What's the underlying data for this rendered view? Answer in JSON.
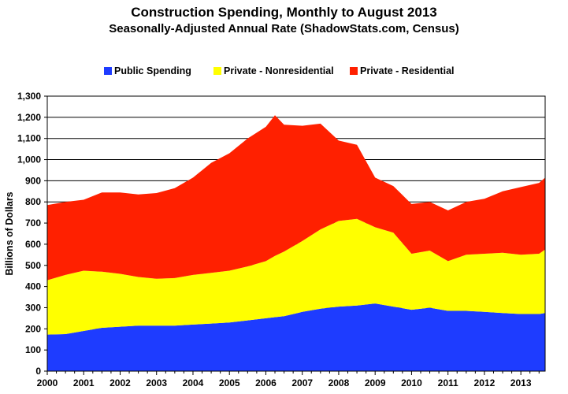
{
  "chart_data": {
    "type": "area",
    "stacked": true,
    "title": "Construction Spending, Monthly to August 2013",
    "subtitle": "Seasonally-Adjusted Annual Rate (ShadowStats.com, Census)",
    "ylabel": "Billions of Dollars",
    "ylim": [
      0,
      1300
    ],
    "xlim": [
      2000.0,
      2013.667
    ],
    "yticks": [
      "0",
      "100",
      "200",
      "300",
      "400",
      "500",
      "600",
      "700",
      "800",
      "900",
      "1,000",
      "1,100",
      "1,200",
      "1,300"
    ],
    "xticks": [
      "2000",
      "2001",
      "2002",
      "2003",
      "2004",
      "2005",
      "2006",
      "2007",
      "2008",
      "2009",
      "2010",
      "2011",
      "2012",
      "2013"
    ],
    "grid": true,
    "legend_position": "top",
    "x": [
      2000.0,
      2000.5,
      2001.0,
      2001.5,
      2002.0,
      2002.5,
      2003.0,
      2003.5,
      2004.0,
      2004.5,
      2005.0,
      2005.5,
      2006.0,
      2006.25,
      2006.5,
      2007.0,
      2007.5,
      2008.0,
      2008.5,
      2009.0,
      2009.5,
      2010.0,
      2010.5,
      2011.0,
      2011.5,
      2012.0,
      2012.5,
      2013.0,
      2013.5,
      2013.667
    ],
    "series": [
      {
        "name": "Public Spending",
        "color": "#1e3cff",
        "values": [
          173,
          175,
          190,
          205,
          210,
          215,
          215,
          215,
          220,
          225,
          230,
          240,
          250,
          255,
          260,
          280,
          295,
          305,
          310,
          320,
          305,
          290,
          300,
          285,
          285,
          280,
          275,
          270,
          270,
          275
        ]
      },
      {
        "name": "Private - Nonresidential",
        "color": "#ffff00",
        "values": [
          257,
          280,
          285,
          265,
          250,
          230,
          222,
          225,
          235,
          240,
          245,
          255,
          270,
          290,
          305,
          335,
          375,
          405,
          410,
          360,
          350,
          265,
          270,
          235,
          265,
          275,
          285,
          280,
          285,
          300
        ]
      },
      {
        "name": "Private - Residential",
        "color": "#ff2000",
        "values": [
          355,
          345,
          335,
          375,
          385,
          390,
          405,
          425,
          460,
          520,
          555,
          605,
          635,
          665,
          600,
          545,
          500,
          380,
          350,
          235,
          220,
          235,
          230,
          240,
          250,
          260,
          290,
          320,
          335,
          340
        ]
      }
    ]
  }
}
